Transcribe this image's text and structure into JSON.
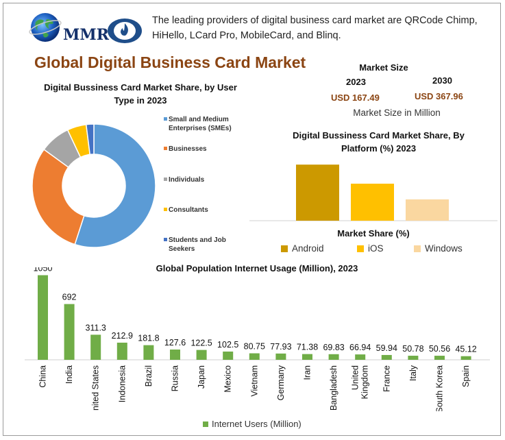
{
  "header": {
    "logo_text": "MMR",
    "description": "The leading providers of digital business card market are QRCode Chimp, HiHello, LCard Pro, MobileCard, and Blinq."
  },
  "main_title": "Global Digital Business Card Market",
  "market_size": {
    "title": "Market Size",
    "year_start": "2023",
    "year_end": "2030",
    "value_start": "USD 167.49",
    "value_end": "USD 367.96",
    "unit_label": "Market Size in Million"
  },
  "chart_data": [
    {
      "type": "pie",
      "title": "Digital Bussiness Card Market Share, by User Type in 2023",
      "categories": [
        "Small and Medium Enterprises (SMEs)",
        "Businesses",
        "Individuals",
        "Consultants",
        "Students and Job Seekers"
      ],
      "values": [
        55,
        30,
        8,
        5,
        2
      ],
      "colors": [
        "#5b9bd5",
        "#ed7d31",
        "#a5a5a5",
        "#ffc000",
        "#4472c4"
      ],
      "legend_position": "right"
    },
    {
      "type": "bar",
      "title": "Digital Bussiness Card Market Share, By Platform (%) 2023",
      "xlabel": "Market Share (%)",
      "categories": [
        "Android",
        "iOS",
        "Windows"
      ],
      "values": [
        50,
        33,
        19
      ],
      "colors": [
        "#cc9900",
        "#ffc000",
        "#fad7a0"
      ],
      "ylim": [
        0,
        55
      ],
      "legend_position": "bottom"
    },
    {
      "type": "bar",
      "title": "Global Population Internet Usage (Million), 2023",
      "series_name": "Internet Users (Million)",
      "categories": [
        "China",
        "India",
        "United States",
        "Indonesia",
        "Brazil",
        "Russia",
        "Japan",
        "Mexico",
        "Vietnam",
        "Germany",
        "Iran",
        "Bangladesh",
        "United Kingdom",
        "France",
        "Italy",
        "South Korea",
        "Spain"
      ],
      "value_labels": [
        "1050",
        "692",
        "311.3",
        "212.9",
        "181.8",
        "127.6",
        "122.5",
        "102.5",
        "80.75",
        "77.93",
        "71.38",
        "69.83",
        "66.94",
        "59.94",
        "50.78",
        "50.56",
        "45.12"
      ],
      "values": [
        1050,
        692,
        311.3,
        212.9,
        181.8,
        127.6,
        122.5,
        102.5,
        80.75,
        77.93,
        71.38,
        69.83,
        66.94,
        59.94,
        50.78,
        50.56,
        45.12
      ],
      "color": "#70ad47",
      "ylim": [
        0,
        1080
      ],
      "legend_position": "bottom"
    }
  ]
}
